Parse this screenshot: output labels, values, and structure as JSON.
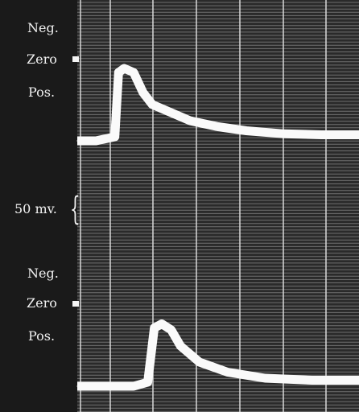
{
  "figure": {
    "colors": {
      "background": "#1c1c1c",
      "grid_vertical": "#d8d8d8",
      "grid_horizontal": "#a8a8a8",
      "trace": "#fafafa",
      "label": "#f2f2f2"
    },
    "labels": {
      "top": {
        "neg": "Neg.",
        "zero": "Zero",
        "pos": "Pos."
      },
      "scale": "50 mv.",
      "bottom": {
        "neg": "Neg.",
        "zero": "Zero",
        "pos": "Pos."
      }
    }
  },
  "chart_data": [
    {
      "type": "line",
      "title": "",
      "xlabel": "",
      "ylabel": "",
      "grid": true,
      "series": [
        {
          "x": [
            0,
            2,
            4,
            4.4,
            5,
            6,
            7,
            8,
            10,
            12,
            15,
            18,
            22,
            26,
            30
          ],
          "values": [
            -32,
            -32,
            -30,
            2,
            4,
            2,
            -8,
            -14,
            -18,
            -22,
            -25,
            -27,
            -28.5,
            -29,
            -29
          ]
        }
      ],
      "ylim": [
        -40,
        30
      ],
      "xlim": [
        0,
        30
      ]
    },
    {
      "type": "line",
      "title": "",
      "xlabel": "",
      "ylabel": "",
      "grid": true,
      "series": [
        {
          "x": [
            0,
            6,
            7.5,
            8.2,
            9,
            10,
            11,
            13,
            16,
            20,
            25,
            30
          ],
          "values": [
            -32,
            -32,
            -30,
            -3,
            -1,
            -4,
            -12,
            -20,
            -25,
            -28,
            -29,
            -29
          ]
        }
      ],
      "ylim": [
        -40,
        30
      ],
      "xlim": [
        0,
        30
      ]
    }
  ]
}
